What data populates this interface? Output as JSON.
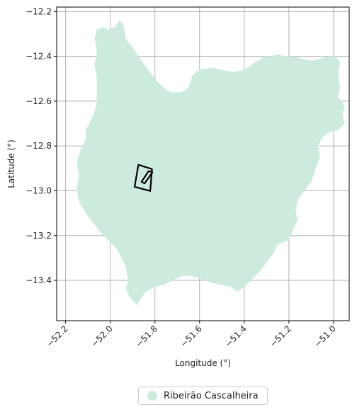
{
  "chart_data": {
    "type": "map",
    "xlabel": "Longitude (°)",
    "ylabel": "Latitude (°)",
    "xlim": [
      -52.24,
      -50.93
    ],
    "ylim": [
      -13.58,
      -12.18
    ],
    "x_ticks": [
      -52.2,
      -52.0,
      -51.8,
      -51.6,
      -51.4,
      -51.2,
      -51.0
    ],
    "x_tick_labels": [
      "−52.2",
      "−52.0",
      "−51.8",
      "−51.6",
      "−51.4",
      "−51.2",
      "−51.0"
    ],
    "y_ticks": [
      -12.2,
      -12.4,
      -12.6,
      -12.8,
      -13.0,
      -13.2,
      -13.4
    ],
    "y_tick_labels": [
      "−12.2",
      "−12.4",
      "−12.6",
      "−12.8",
      "−13.0",
      "−13.2",
      "−13.4"
    ],
    "grid": true,
    "legend_placement": "below",
    "region": {
      "name": "Ribeirão Cascalheira",
      "color": "#cdebdd",
      "polygon": [
        [
          -52.06,
          -12.28
        ],
        [
          -52.03,
          -12.27
        ],
        [
          -52.01,
          -12.28
        ],
        [
          -51.98,
          -12.27
        ],
        [
          -51.96,
          -12.24
        ],
        [
          -51.94,
          -12.26
        ],
        [
          -51.93,
          -12.32
        ],
        [
          -51.9,
          -12.36
        ],
        [
          -51.86,
          -12.42
        ],
        [
          -51.83,
          -12.46
        ],
        [
          -51.8,
          -12.5
        ],
        [
          -51.78,
          -12.52
        ],
        [
          -51.75,
          -12.55
        ],
        [
          -51.72,
          -12.56
        ],
        [
          -51.68,
          -12.56
        ],
        [
          -51.65,
          -12.54
        ],
        [
          -51.63,
          -12.48
        ],
        [
          -51.6,
          -12.46
        ],
        [
          -51.55,
          -12.45
        ],
        [
          -51.5,
          -12.46
        ],
        [
          -51.45,
          -12.47
        ],
        [
          -51.4,
          -12.46
        ],
        [
          -51.37,
          -12.44
        ],
        [
          -51.34,
          -12.42
        ],
        [
          -51.31,
          -12.4
        ],
        [
          -51.28,
          -12.4
        ],
        [
          -51.25,
          -12.39
        ],
        [
          -51.22,
          -12.4
        ],
        [
          -51.18,
          -12.4
        ],
        [
          -51.14,
          -12.41
        ],
        [
          -51.1,
          -12.42
        ],
        [
          -51.06,
          -12.41
        ],
        [
          -51.02,
          -12.4
        ],
        [
          -50.99,
          -12.4
        ],
        [
          -50.97,
          -12.43
        ],
        [
          -50.98,
          -12.48
        ],
        [
          -50.97,
          -12.54
        ],
        [
          -50.98,
          -12.58
        ],
        [
          -50.95,
          -12.62
        ],
        [
          -50.96,
          -12.66
        ],
        [
          -50.95,
          -12.7
        ],
        [
          -50.98,
          -12.73
        ],
        [
          -51.02,
          -12.74
        ],
        [
          -51.05,
          -12.76
        ],
        [
          -51.07,
          -12.8
        ],
        [
          -51.06,
          -12.85
        ],
        [
          -51.08,
          -12.9
        ],
        [
          -51.1,
          -12.96
        ],
        [
          -51.13,
          -13.0
        ],
        [
          -51.16,
          -13.04
        ],
        [
          -51.17,
          -13.09
        ],
        [
          -51.16,
          -13.13
        ],
        [
          -51.18,
          -13.17
        ],
        [
          -51.2,
          -13.22
        ],
        [
          -51.25,
          -13.24
        ],
        [
          -51.27,
          -13.28
        ],
        [
          -51.3,
          -13.32
        ],
        [
          -51.33,
          -13.36
        ],
        [
          -51.36,
          -13.39
        ],
        [
          -51.4,
          -13.43
        ],
        [
          -51.43,
          -13.45
        ],
        [
          -51.46,
          -13.43
        ],
        [
          -51.5,
          -13.42
        ],
        [
          -51.55,
          -13.41
        ],
        [
          -51.6,
          -13.39
        ],
        [
          -51.64,
          -13.38
        ],
        [
          -51.68,
          -13.38
        ],
        [
          -51.72,
          -13.4
        ],
        [
          -51.76,
          -13.42
        ],
        [
          -51.8,
          -13.43
        ],
        [
          -51.84,
          -13.45
        ],
        [
          -51.86,
          -13.48
        ],
        [
          -51.88,
          -13.51
        ],
        [
          -51.91,
          -13.48
        ],
        [
          -51.93,
          -13.44
        ],
        [
          -51.92,
          -13.4
        ],
        [
          -51.93,
          -13.34
        ],
        [
          -51.95,
          -13.3
        ],
        [
          -51.97,
          -13.26
        ],
        [
          -52.0,
          -13.23
        ],
        [
          -52.04,
          -13.19
        ],
        [
          -52.08,
          -13.14
        ],
        [
          -52.11,
          -13.1
        ],
        [
          -52.14,
          -13.05
        ],
        [
          -52.15,
          -12.99
        ],
        [
          -52.14,
          -12.93
        ],
        [
          -52.15,
          -12.87
        ],
        [
          -52.13,
          -12.81
        ],
        [
          -52.11,
          -12.77
        ],
        [
          -52.11,
          -12.73
        ],
        [
          -52.09,
          -12.69
        ],
        [
          -52.07,
          -12.65
        ],
        [
          -52.06,
          -12.6
        ],
        [
          -52.06,
          -12.55
        ],
        [
          -52.06,
          -12.5
        ],
        [
          -52.07,
          -12.44
        ],
        [
          -52.06,
          -12.38
        ],
        [
          -52.07,
          -12.32
        ]
      ]
    },
    "outlines": [
      {
        "type": "rotated-rectangle",
        "stroke": "#000000",
        "polygon": [
          [
            -51.874,
            -12.884
          ],
          [
            -51.813,
            -12.903
          ],
          [
            -51.821,
            -13.001
          ],
          [
            -51.891,
            -12.982
          ]
        ]
      },
      {
        "type": "sliver",
        "stroke": "#000000",
        "polygon": [
          [
            -51.828,
            -12.912
          ],
          [
            -51.811,
            -12.918
          ],
          [
            -51.846,
            -12.967
          ],
          [
            -51.86,
            -12.96
          ]
        ]
      }
    ]
  },
  "legend": {
    "label": "Ribeirão Cascalheira",
    "color": "#cdebdd"
  }
}
